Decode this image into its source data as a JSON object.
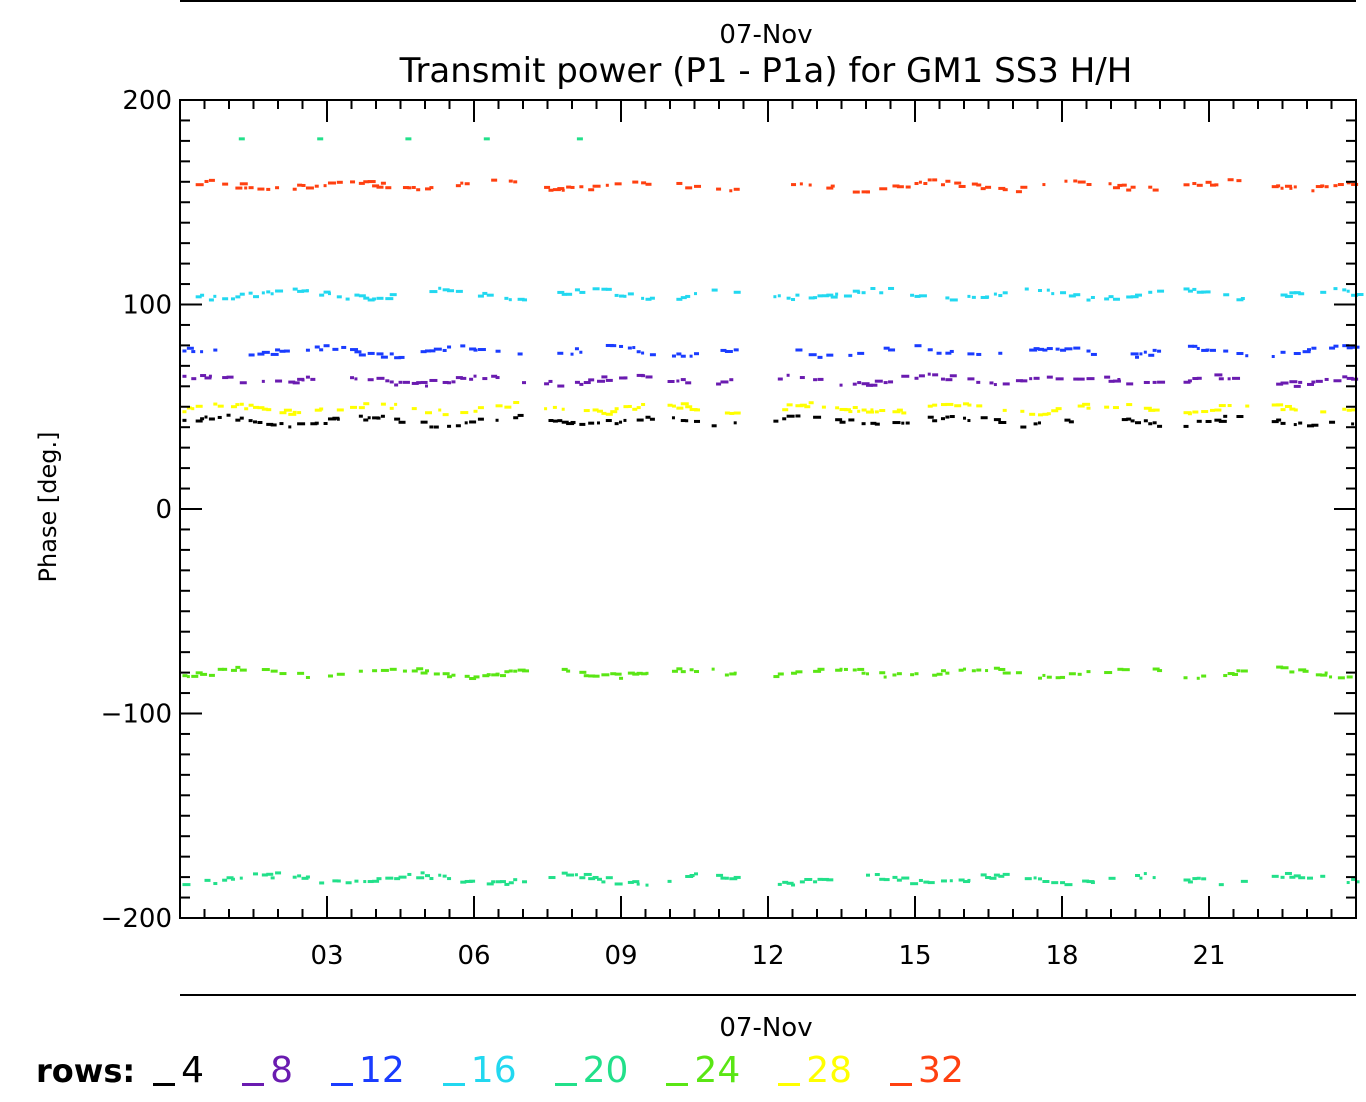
{
  "chart_data": {
    "type": "scatter",
    "top_label": "07-Nov",
    "title": "Transmit power (P1 - P1a) for GM1 SS3 H/H",
    "ylabel": "Phase [deg.]",
    "xlabel": "07-Nov",
    "xlim": [
      0,
      24
    ],
    "ylim": [
      -200,
      200
    ],
    "xticks": [
      3,
      6,
      9,
      12,
      15,
      18,
      21
    ],
    "xtick_labels": [
      "03",
      "06",
      "09",
      "12",
      "15",
      "18",
      "21"
    ],
    "yticks": [
      -200,
      -100,
      0,
      100,
      200
    ],
    "ytick_labels": [
      "−200",
      "−100",
      "0",
      "100",
      "200"
    ],
    "legend": {
      "label": "rows:",
      "placement": "bottom"
    },
    "series": [
      {
        "name": "4",
        "color": "#000000",
        "level": 43
      },
      {
        "name": "8",
        "color": "#6a1bb0",
        "level": 63
      },
      {
        "name": "12",
        "color": "#1a3cff",
        "level": 77
      },
      {
        "name": "16",
        "color": "#22d8f0",
        "level": 105
      },
      {
        "name": "20",
        "color": "#22e08a",
        "level": -181,
        "extra_points": [
          [
            1.2,
            181
          ],
          [
            2.8,
            181
          ],
          [
            4.6,
            181
          ],
          [
            6.2,
            181
          ],
          [
            8.1,
            181
          ]
        ]
      },
      {
        "name": "24",
        "color": "#5ae614",
        "level": -80
      },
      {
        "name": "28",
        "color": "#ffff00",
        "level": 49
      },
      {
        "name": "32",
        "color": "#ff4010",
        "level": 158
      }
    ],
    "gaps": [
      [
        7.0,
        7.4
      ],
      [
        9.6,
        9.9
      ],
      [
        10.5,
        10.8
      ],
      [
        11.3,
        12.1
      ],
      [
        16.8,
        17.0
      ],
      [
        18.6,
        18.8
      ],
      [
        20.0,
        20.4
      ],
      [
        21.8,
        22.2
      ]
    ]
  }
}
